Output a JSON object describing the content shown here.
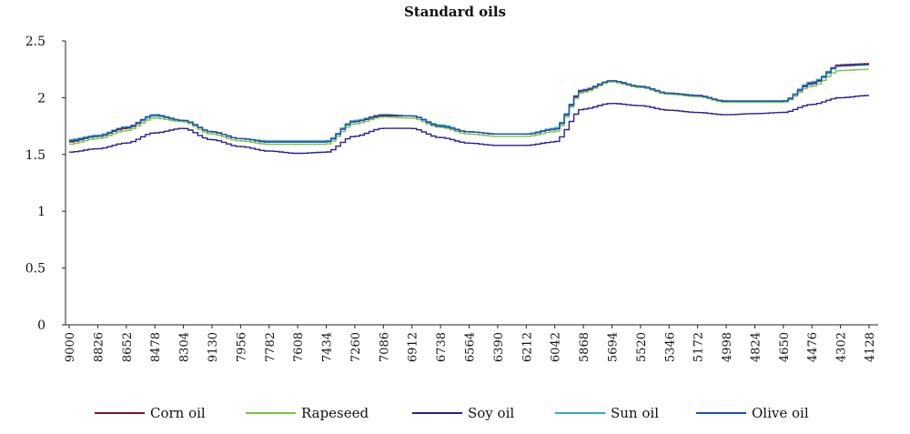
{
  "chart_data": {
    "type": "line",
    "title": "Standard oils",
    "xlabel": "",
    "ylabel": "",
    "ylim": [
      0,
      2.5
    ],
    "yticks": [
      "0",
      "0.5",
      "1",
      "1.5",
      "2",
      "2.5"
    ],
    "x": [
      "9000",
      "8826",
      "8652",
      "8478",
      "8304",
      "9130",
      "7956",
      "7782",
      "7608",
      "7434",
      "7260",
      "7086",
      "6912",
      "6738",
      "6564",
      "6390",
      "6212",
      "6042",
      "5868",
      "5694",
      "5520",
      "5346",
      "5172",
      "4998",
      "4824",
      "4650",
      "4476",
      "4302",
      "4128"
    ],
    "grid": false,
    "legend_position": "bottom",
    "series": [
      {
        "name": "Corn oil",
        "color": "#7b1430",
        "values": [
          1.61,
          1.66,
          1.73,
          1.84,
          1.8,
          1.7,
          1.64,
          1.61,
          1.61,
          1.61,
          1.79,
          1.84,
          1.84,
          1.75,
          1.7,
          1.68,
          1.68,
          1.72,
          2.06,
          2.15,
          2.1,
          2.04,
          2.02,
          1.97,
          1.97,
          1.97,
          2.13,
          2.29,
          2.3
        ]
      },
      {
        "name": "Rapeseed",
        "color": "#7dc242",
        "values": [
          1.59,
          1.64,
          1.71,
          1.82,
          1.79,
          1.68,
          1.62,
          1.59,
          1.59,
          1.59,
          1.77,
          1.83,
          1.82,
          1.74,
          1.68,
          1.66,
          1.66,
          1.7,
          2.05,
          2.14,
          2.09,
          2.03,
          2.01,
          1.96,
          1.96,
          1.96,
          2.1,
          2.24,
          2.25
        ]
      },
      {
        "name": "Soy oil",
        "color": "#2b1f8f",
        "values": [
          1.52,
          1.55,
          1.6,
          1.69,
          1.73,
          1.63,
          1.57,
          1.53,
          1.51,
          1.52,
          1.66,
          1.73,
          1.73,
          1.65,
          1.6,
          1.58,
          1.58,
          1.61,
          1.9,
          1.95,
          1.93,
          1.89,
          1.87,
          1.85,
          1.86,
          1.87,
          1.94,
          2.0,
          2.02
        ]
      },
      {
        "name": "Sun oil",
        "color": "#33aacc",
        "values": [
          1.63,
          1.67,
          1.74,
          1.84,
          1.8,
          1.7,
          1.64,
          1.62,
          1.62,
          1.62,
          1.8,
          1.85,
          1.84,
          1.76,
          1.7,
          1.68,
          1.68,
          1.73,
          2.07,
          2.15,
          2.1,
          2.04,
          2.02,
          1.97,
          1.97,
          1.97,
          2.14,
          2.28,
          2.29
        ]
      },
      {
        "name": "Olive oil",
        "color": "#1a4fb3",
        "values": [
          1.62,
          1.66,
          1.74,
          1.85,
          1.8,
          1.7,
          1.64,
          1.61,
          1.61,
          1.61,
          1.79,
          1.85,
          1.84,
          1.75,
          1.7,
          1.68,
          1.68,
          1.72,
          2.07,
          2.15,
          2.1,
          2.04,
          2.02,
          1.97,
          1.97,
          1.97,
          2.12,
          2.28,
          2.29
        ]
      }
    ]
  }
}
